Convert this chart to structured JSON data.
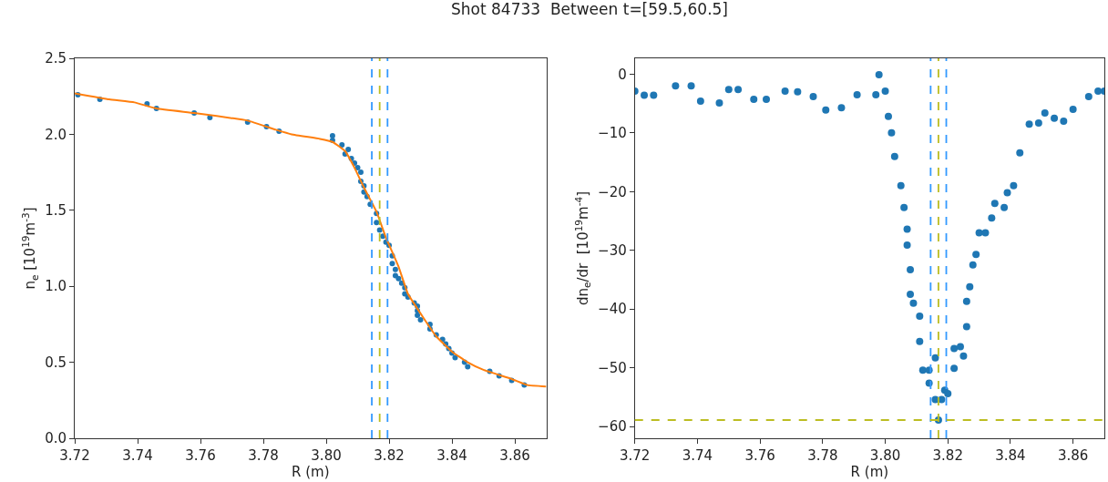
{
  "chart_data": [
    {
      "type": "scatter",
      "title": "Shot 84733  Between t=[59.5,60.5]",
      "xlabel": "R (m)",
      "ylabel": "n$_{e}$ [10$^{19}$m$^{-3}$]",
      "marker": "circle",
      "xlim": [
        3.72,
        3.87
      ],
      "xticks": [
        {
          "value": 3.72,
          "label": "3.72"
        },
        {
          "value": 3.74,
          "label": "3.74"
        },
        {
          "value": 3.76,
          "label": "3.76"
        },
        {
          "value": 3.78,
          "label": "3.78"
        },
        {
          "value": 3.8,
          "label": "3.80"
        },
        {
          "value": 3.82,
          "label": "3.82"
        },
        {
          "value": 3.84,
          "label": "3.84"
        },
        {
          "value": 3.86,
          "label": "3.86"
        }
      ],
      "ylim": [
        0,
        2.5
      ],
      "yticks": [
        {
          "value": 0,
          "label": "0.0"
        },
        {
          "value": 0.5,
          "label": "0.5"
        },
        {
          "value": 1,
          "label": "1.0"
        },
        {
          "value": 1.5,
          "label": "1.5"
        },
        {
          "value": 2,
          "label": "2.0"
        },
        {
          "value": 2.5,
          "label": "2.5"
        }
      ],
      "ref_lines": [
        {
          "axis": "x",
          "value": 3.8145,
          "color": "#3399ff",
          "line_style": "dashed"
        },
        {
          "axis": "x",
          "value": 3.817,
          "color": "#bcbd22",
          "line_style": "dashed"
        },
        {
          "axis": "x",
          "value": 3.8195,
          "color": "#3399ff",
          "line_style": "dashed"
        }
      ],
      "series": [
        {
          "color": "#1f77b4",
          "x": [
            3.721,
            3.728,
            3.743,
            3.746,
            3.758,
            3.763,
            3.775,
            3.781,
            3.785,
            3.802,
            3.802,
            3.805,
            3.807,
            3.806,
            3.808,
            3.809,
            3.81,
            3.811,
            3.811,
            3.812,
            3.812,
            3.813,
            3.814,
            3.816,
            3.816,
            3.817,
            3.818,
            3.819,
            3.82,
            3.821,
            3.821,
            3.822,
            3.822,
            3.823,
            3.824,
            3.825,
            3.825,
            3.826,
            3.828,
            3.829,
            3.829,
            3.829,
            3.83,
            3.833,
            3.833,
            3.835,
            3.837,
            3.838,
            3.839,
            3.84,
            3.841,
            3.844,
            3.845,
            3.852,
            3.855,
            3.859,
            3.863
          ],
          "values": [
            2.26,
            2.23,
            2.2,
            2.17,
            2.14,
            2.11,
            2.08,
            2.05,
            2.02,
            1.99,
            1.96,
            1.93,
            1.9,
            1.87,
            1.84,
            1.81,
            1.78,
            1.75,
            1.69,
            1.66,
            1.62,
            1.59,
            1.54,
            1.48,
            1.42,
            1.37,
            1.33,
            1.29,
            1.27,
            1.2,
            1.15,
            1.11,
            1.07,
            1.05,
            1.02,
            0.99,
            0.95,
            0.93,
            0.89,
            0.87,
            0.84,
            0.81,
            0.78,
            0.75,
            0.72,
            0.68,
            0.65,
            0.62,
            0.59,
            0.56,
            0.53,
            0.5,
            0.47,
            0.44,
            0.41,
            0.38,
            0.35
          ]
        },
        {
          "type": "line",
          "marker": "none",
          "color": "#ff7f0e",
          "x": [
            3.72,
            3.731,
            3.739,
            3.746,
            3.758,
            3.775,
            3.784,
            3.789,
            3.798,
            3.802,
            3.806,
            3.809,
            3.812,
            3.816,
            3.819,
            3.823,
            3.826,
            3.831,
            3.835,
            3.84,
            3.845,
            3.85,
            3.859,
            3.864,
            3.87
          ],
          "values": [
            2.27,
            2.23,
            2.21,
            2.17,
            2.14,
            2.09,
            2.03,
            2.0,
            1.97,
            1.95,
            1.89,
            1.78,
            1.65,
            1.49,
            1.32,
            1.13,
            0.95,
            0.79,
            0.67,
            0.57,
            0.5,
            0.45,
            0.39,
            0.35,
            0.34
          ]
        }
      ]
    },
    {
      "type": "scatter",
      "xlabel": "R (m)",
      "ylabel": "dn$_{e}$/dr  [10$^{19}$m$^{-4}$]",
      "marker": "circle",
      "xlim": [
        3.72,
        3.87
      ],
      "xticks": [
        {
          "value": 3.72,
          "label": "3.72"
        },
        {
          "value": 3.74,
          "label": "3.74"
        },
        {
          "value": 3.76,
          "label": "3.76"
        },
        {
          "value": 3.78,
          "label": "3.78"
        },
        {
          "value": 3.8,
          "label": "3.80"
        },
        {
          "value": 3.82,
          "label": "3.82"
        },
        {
          "value": 3.84,
          "label": "3.84"
        },
        {
          "value": 3.86,
          "label": "3.86"
        }
      ],
      "ylim": [
        -62,
        2.7
      ],
      "yticks": [
        {
          "value": -60,
          "label": "−60"
        },
        {
          "value": -50,
          "label": "−50"
        },
        {
          "value": -40,
          "label": "−40"
        },
        {
          "value": -30,
          "label": "−30"
        },
        {
          "value": -20,
          "label": "−20"
        },
        {
          "value": -10,
          "label": "−10"
        },
        {
          "value": 0,
          "label": "0"
        }
      ],
      "ref_lines": [
        {
          "axis": "x",
          "value": 3.8145,
          "color": "#3399ff",
          "line_style": "dashed"
        },
        {
          "axis": "x",
          "value": 3.817,
          "color": "#bcbd22",
          "line_style": "dashed"
        },
        {
          "axis": "x",
          "value": 3.8195,
          "color": "#3399ff",
          "line_style": "dashed"
        },
        {
          "axis": "y",
          "value": -58.9,
          "color": "#bcbd22",
          "line_style": "dashed"
        }
      ],
      "series": [
        {
          "color": "#1f77b4",
          "x": [
            3.72,
            3.723,
            3.726,
            3.733,
            3.738,
            3.741,
            3.747,
            3.75,
            3.753,
            3.758,
            3.762,
            3.768,
            3.772,
            3.777,
            3.781,
            3.786,
            3.791,
            3.797,
            3.798,
            3.8,
            3.801,
            3.802,
            3.803,
            3.805,
            3.806,
            3.807,
            3.807,
            3.808,
            3.808,
            3.809,
            3.811,
            3.811,
            3.812,
            3.814,
            3.814,
            3.816,
            3.816,
            3.817,
            3.818,
            3.819,
            3.82,
            3.822,
            3.822,
            3.824,
            3.825,
            3.826,
            3.826,
            3.827,
            3.828,
            3.829,
            3.83,
            3.832,
            3.834,
            3.835,
            3.838,
            3.839,
            3.841,
            3.843,
            3.846,
            3.849,
            3.851,
            3.854,
            3.857,
            3.86,
            3.865,
            3.868,
            3.87
          ],
          "values": [
            -2.9,
            -3.6,
            -3.6,
            -2.0,
            -2.0,
            -4.6,
            -4.9,
            -2.6,
            -2.6,
            -4.3,
            -4.3,
            -2.9,
            -3.0,
            -3.8,
            -6.1,
            -5.7,
            -3.5,
            -3.5,
            -0.1,
            -2.9,
            -7.2,
            -10.0,
            -14.0,
            -19.0,
            -22.7,
            -26.4,
            -29.1,
            -33.3,
            -37.5,
            -39.0,
            -41.2,
            -45.5,
            -50.4,
            -52.6,
            -50.4,
            -48.3,
            -55.4,
            -58.9,
            -55.4,
            -53.8,
            -54.4,
            -50.1,
            -46.7,
            -46.4,
            -48.0,
            -43.0,
            -38.7,
            -36.2,
            -32.5,
            -30.7,
            -27.0,
            -27.0,
            -24.5,
            -22.0,
            -22.7,
            -20.2,
            -19.0,
            -13.4,
            -8.5,
            -8.3,
            -6.6,
            -7.5,
            -8.0,
            -6.0,
            -3.8,
            -2.9,
            -2.9
          ]
        }
      ]
    }
  ]
}
